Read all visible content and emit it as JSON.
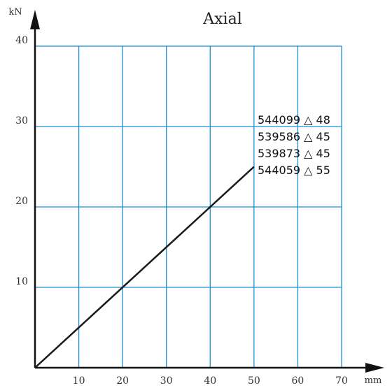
{
  "chart_data": {
    "type": "line",
    "title": "Axial",
    "xlabel": "mm",
    "ylabel": "kN",
    "xlim": [
      0,
      70
    ],
    "ylim": [
      0,
      40
    ],
    "xticks": [
      10,
      20,
      30,
      40,
      50,
      60,
      70
    ],
    "yticks": [
      10,
      20,
      30,
      40
    ],
    "grid": true,
    "series": [
      {
        "x": [
          0,
          50
        ],
        "y": [
          0,
          25
        ]
      }
    ],
    "annotations": [
      "544099 △ 48",
      "539586 △ 45",
      "539873 △ 45",
      "544059 △ 55"
    ],
    "colors": {
      "grid": "#1a8fd6",
      "axis": "#111111",
      "line": "#1a1a1a"
    }
  }
}
